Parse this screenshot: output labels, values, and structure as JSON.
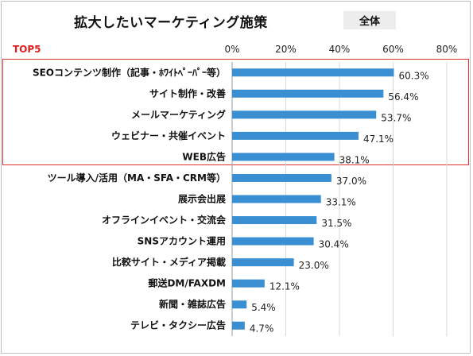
{
  "header": {
    "title": "拡大したいマーケティング施策",
    "badge": "全体",
    "top5_label": "TOP5"
  },
  "chart_data": {
    "type": "bar",
    "orientation": "horizontal",
    "title": "拡大したいマーケティング施策",
    "categories": [
      "SEOコンテンツ制作（記事・ﾎﾜｲﾄﾍﾟｰﾊﾟｰ等）",
      "サイト制作・改善",
      "メールマーケティング",
      "ウェビナー・共催イベント",
      "WEB広告",
      "ツール導入/活用（MA・SFA・CRM等）",
      "展示会出展",
      "オフラインイベント・交流会",
      "SNSアカウント運用",
      "比較サイト・メディア掲載",
      "郵送DM/FAXDM",
      "新聞・雑誌広告",
      "テレビ・タクシー広告"
    ],
    "values": [
      60.3,
      56.4,
      53.7,
      47.1,
      38.1,
      37.0,
      33.1,
      31.5,
      30.4,
      23.0,
      12.1,
      5.4,
      4.7
    ],
    "value_labels": [
      "60.3%",
      "56.4%",
      "53.7%",
      "47.1%",
      "38.1%",
      "37.0%",
      "33.1%",
      "31.5%",
      "30.4%",
      "23.0%",
      "12.1%",
      "5.4%",
      "4.7%"
    ],
    "xlim": [
      0,
      80
    ],
    "xticks": [
      0,
      20,
      40,
      60,
      80
    ],
    "xtick_labels": [
      "0%",
      "20%",
      "40%",
      "60%",
      "80%"
    ],
    "axis_position": "top",
    "grid": true,
    "bar_color": "#3a8fd2",
    "highlight_color": "#e03030",
    "highlight_top_n": 5
  }
}
